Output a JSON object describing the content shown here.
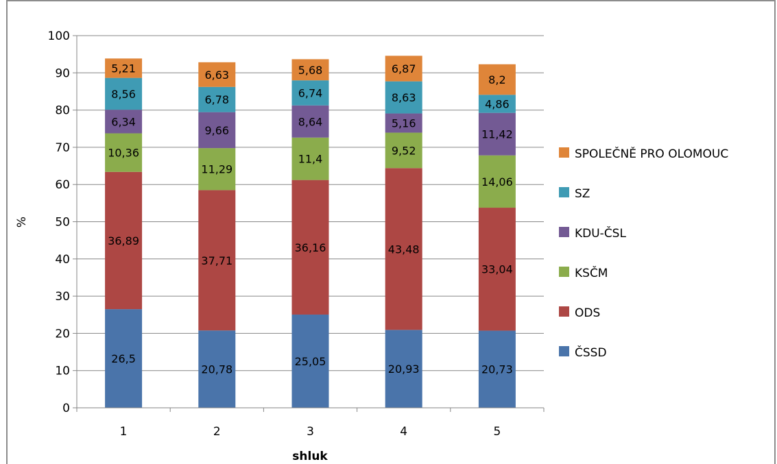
{
  "chart_data": {
    "type": "bar",
    "stacked": true,
    "xlabel": "shluk",
    "ylabel": "%",
    "ylim": [
      0,
      100
    ],
    "yticks": [
      "0",
      "10",
      "20",
      "30",
      "40",
      "50",
      "60",
      "70",
      "80",
      "90",
      "100"
    ],
    "grid": true,
    "legend_position": "right",
    "categories": [
      "1",
      "2",
      "3",
      "4",
      "5"
    ],
    "series": [
      {
        "name": "ČSSD",
        "color": "#4a74aa",
        "values": [
          26.5,
          20.78,
          25.05,
          20.93,
          20.73
        ],
        "labels": [
          "26,5",
          "20,78",
          "25,05",
          "20,93",
          "20,73"
        ]
      },
      {
        "name": "ODS",
        "color": "#ad4744",
        "values": [
          36.89,
          37.71,
          36.16,
          43.48,
          33.04
        ],
        "labels": [
          "36,89",
          "37,71",
          "36,16",
          "43,48",
          "33,04"
        ]
      },
      {
        "name": "KSČM",
        "color": "#8bac4c",
        "values": [
          10.36,
          11.29,
          11.4,
          9.52,
          14.06
        ],
        "labels": [
          "10,36",
          "11,29",
          "11,4",
          "9,52",
          "14,06"
        ]
      },
      {
        "name": "KDU-ČSL",
        "color": "#735a94",
        "values": [
          6.34,
          9.66,
          8.64,
          5.16,
          11.42
        ],
        "labels": [
          "6,34",
          "9,66",
          "8,64",
          "5,16",
          "11,42"
        ]
      },
      {
        "name": "SZ",
        "color": "#3f9bb4",
        "values": [
          8.56,
          6.78,
          6.74,
          8.63,
          4.86
        ],
        "labels": [
          "8,56",
          "6,78",
          "6,74",
          "8,63",
          "4,86"
        ]
      },
      {
        "name": "SPOLEČNĚ PRO OLOMOUC",
        "color": "#df8539",
        "values": [
          5.21,
          6.63,
          5.68,
          6.87,
          8.2
        ],
        "labels": [
          "5,21",
          "6,63",
          "5,68",
          "6,87",
          "8,2"
        ]
      }
    ]
  }
}
